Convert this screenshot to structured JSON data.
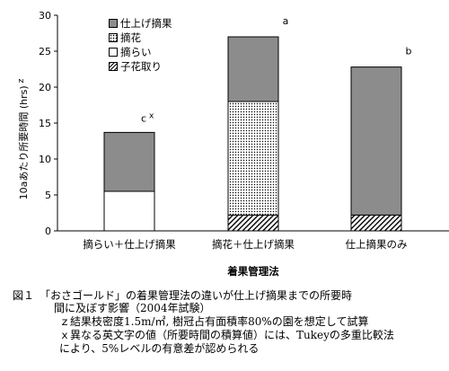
{
  "chart_data": {
    "type": "bar",
    "stacked": true,
    "categories": [
      "摘らい＋仕上げ摘果",
      "摘花＋仕上げ摘果",
      "仕上摘果のみ"
    ],
    "series": [
      {
        "name": "子花取り",
        "values": [
          0,
          2.2,
          2.2
        ],
        "pattern": "hatch"
      },
      {
        "name": "摘らい",
        "values": [
          5.5,
          0,
          0
        ],
        "pattern": "white"
      },
      {
        "name": "摘花",
        "values": [
          0,
          15.8,
          0
        ],
        "pattern": "dots"
      },
      {
        "name": "仕上げ摘果",
        "values": [
          8.2,
          9.0,
          20.6
        ],
        "pattern": "gray"
      }
    ],
    "totals": [
      13.7,
      27.0,
      22.8
    ],
    "significance": [
      "c",
      "a",
      "b"
    ],
    "significance_mark": "x",
    "ylabel": "10aあたり所要時間 (hrs)",
    "ylabel_mark": "z",
    "xlabel": "着果管理法",
    "ylim": [
      0,
      30
    ],
    "yticks": [
      0,
      5,
      10,
      15,
      20,
      25,
      30
    ],
    "legend_position": "top-left",
    "legend_order": [
      "仕上げ摘果",
      "摘花",
      "摘らい",
      "子花取り"
    ]
  },
  "colors": {
    "gray": "#8c8c8c",
    "axis": "#000000",
    "background": "#ffffff"
  },
  "caption": {
    "lines": [
      "図１　「おさゴールド」の着果管理法の違いが仕上げ摘果までの所要時",
      "間に及ぼす影響（2004年試験）",
      "ｚ結果枝密度1.5m/㎡, 樹冠占有面積率80%の園を想定して試算",
      "ｘ異なる英文字の値（所要時間の積算値）には、Tukeyの多重比較法",
      "により、5%レベルの有意差が認められる"
    ]
  }
}
